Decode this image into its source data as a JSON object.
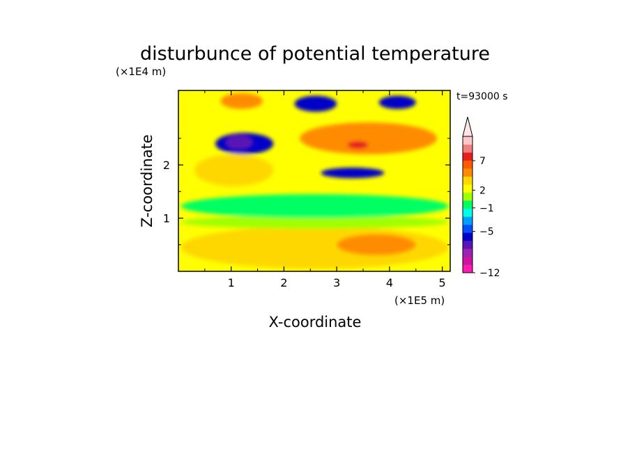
{
  "chart_data": {
    "type": "heatmap",
    "title": "disturbunce of potential temperature",
    "xlabel": "X-coordinate",
    "ylabel": "Z-coordinate",
    "x_unit": "(×1E5 m)",
    "y_unit": "(×1E4 m)",
    "time_label": "t=93000 s",
    "xlim": [
      0,
      5.15
    ],
    "ylim": [
      0,
      3.4
    ],
    "x_ticks": [
      {
        "value": 1,
        "label": "1"
      },
      {
        "value": 2,
        "label": "2"
      },
      {
        "value": 3,
        "label": "3"
      },
      {
        "value": 4,
        "label": "4"
      },
      {
        "value": 5,
        "label": "5"
      }
    ],
    "y_ticks": [
      {
        "value": 1,
        "label": "1"
      },
      {
        "value": 2,
        "label": "2"
      }
    ],
    "colorbar": {
      "extend_max": true,
      "labels": [
        {
          "level": 7,
          "label": "7"
        },
        {
          "level": 2,
          "label": "2"
        },
        {
          "level": -1,
          "label": "−1"
        },
        {
          "level": -5,
          "label": "−5"
        },
        {
          "level": -12,
          "label": "−12"
        }
      ],
      "colors": [
        "#ff1ab4",
        "#cc149e",
        "#a020b4",
        "#5a14b4",
        "#0000c8",
        "#0050ff",
        "#00a0ff",
        "#00ffe6",
        "#00ff64",
        "#a0ff00",
        "#ffff00",
        "#ffd700",
        "#ff8c00",
        "#ff5a00",
        "#e61e1e",
        "#f08080",
        "#ffc8c8"
      ],
      "over_color": "#ffe6e6"
    },
    "field_regions": [
      {
        "x": [
          0.05,
          5.12
        ],
        "z": [
          0.05,
          0.85
        ],
        "level": 2,
        "color": "#ffd700"
      },
      {
        "x": [
          0.05,
          5.12
        ],
        "z": [
          0.8,
          1.05
        ],
        "level": 0,
        "color": "#a0ff00"
      },
      {
        "x": [
          0.05,
          5.12
        ],
        "z": [
          1.0,
          1.45
        ],
        "level": -1,
        "color": "#00ff64"
      },
      {
        "x": [
          0.3,
          1.8
        ],
        "z": [
          1.6,
          2.2
        ],
        "level": 2,
        "color": "#ffd700"
      },
      {
        "x": [
          0.7,
          1.8
        ],
        "z": [
          2.2,
          2.6
        ],
        "level": -5,
        "color": "#0000c8"
      },
      {
        "x": [
          0.9,
          1.4
        ],
        "z": [
          2.3,
          2.55
        ],
        "level": -8,
        "color": "#5a14b4"
      },
      {
        "x": [
          0.8,
          1.6
        ],
        "z": [
          3.05,
          3.35
        ],
        "level": 5,
        "color": "#ff8c00"
      },
      {
        "x": [
          2.3,
          4.9
        ],
        "z": [
          2.2,
          2.8
        ],
        "level": 5,
        "color": "#ff8c00"
      },
      {
        "x": [
          3.2,
          3.6
        ],
        "z": [
          2.3,
          2.45
        ],
        "level": 8,
        "color": "#e61e1e"
      },
      {
        "x": [
          2.7,
          3.9
        ],
        "z": [
          1.75,
          1.95
        ],
        "level": -5,
        "color": "#0000c8"
      },
      {
        "x": [
          3.8,
          4.5
        ],
        "z": [
          3.05,
          3.3
        ],
        "level": -5,
        "color": "#0000c8"
      },
      {
        "x": [
          2.2,
          3.0
        ],
        "z": [
          3.0,
          3.3
        ],
        "level": -5,
        "color": "#0000c8"
      },
      {
        "x": [
          3.0,
          4.5
        ],
        "z": [
          0.3,
          0.7
        ],
        "level": 5,
        "color": "#ff8c00"
      }
    ]
  }
}
